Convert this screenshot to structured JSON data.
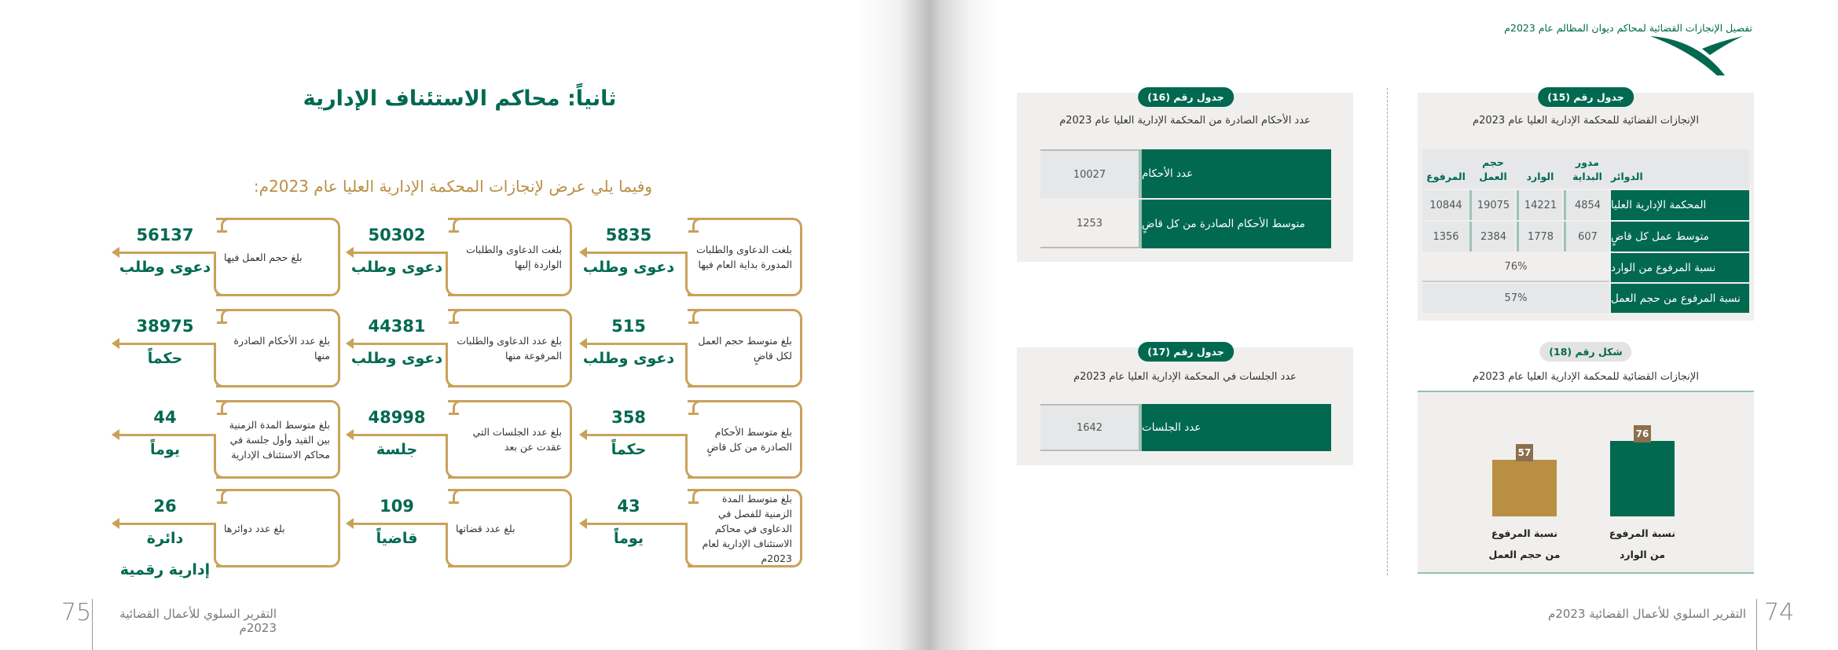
{
  "left_page": {
    "title": "ثانياً: محاكم الاستئناف الإدارية",
    "subtitle": "وفيما يلي عرض لإنجازات المحكمة الإدارية العليا عام 2023م:",
    "boxes": [
      [
        {
          "text": "بلغت الدعاوى والطلبات المدورة بداية العام فيها",
          "value": "5835",
          "unit": "دعوى وطلب"
        },
        {
          "text": "بلغت الدعاوى والطلبات الواردة إليها",
          "value": "50302",
          "unit": "دعوى وطلب"
        },
        {
          "text": "بلغ حجم العمل فيها",
          "value": "56137",
          "unit": "دعوى وطلب"
        }
      ],
      [
        {
          "text": "بلغ متوسط حجم العمل لكل قاضٍ",
          "value": "515",
          "unit": "دعوى وطلب"
        },
        {
          "text": "بلغ عدد الدعاوى والطلبات المرفوعة منها",
          "value": "44381",
          "unit": "دعوى وطلب"
        },
        {
          "text": "بلغ عدد الأحكام الصادرة منها",
          "value": "38975",
          "unit": "حكماً"
        }
      ],
      [
        {
          "text": "بلغ متوسط الأحكام الصادرة من كل قاضٍ",
          "value": "358",
          "unit": "حكماً"
        },
        {
          "text": "بلغ عدد الجلسات التي عقدت عن بعد",
          "value": "48998",
          "unit": "جلسة"
        },
        {
          "text": "بلغ متوسط المدة الزمنية بين القيد وأول جلسة في محاكم الاستئناف الإدارية",
          "value": "44",
          "unit": "يوماً"
        }
      ],
      [
        {
          "text": "بلغ متوسط المدة الزمنية للفصل في الدعاوى في محاكم الاستئناف الإدارية لعام 2023م",
          "value": "43",
          "unit": "يوماً"
        },
        {
          "text": "بلغ عدد قضاتها",
          "value": "109",
          "unit": "قاضياً"
        },
        {
          "text": "بلغ عدد دوائرها",
          "value": "26",
          "unit": "دائرة",
          "unit2": "إدارية رقمية"
        }
      ]
    ],
    "footer": "التقرير السلوي للأعمال القضائية 2023م",
    "page_number": "75"
  },
  "right_page": {
    "header": "تفصيل الإنجازات القضائية لمحاكم ديوان المظالم عام 2023م",
    "table15": {
      "badge": "جدول رقم (15)",
      "title": "الإنجازات القضائية للمحكمة الإدارية العليا عام 2023م",
      "headers": [
        "الدوائر",
        "مدور البداية",
        "الوارد",
        "حجم العمل",
        "المرفوع"
      ],
      "rows": [
        {
          "label": "المحكمة الإدارية العليا",
          "values": [
            "4854",
            "14221",
            "19075",
            "10844"
          ]
        },
        {
          "label": "متوسط عمل كل قاضٍ",
          "values": [
            "607",
            "1778",
            "2384",
            "1356"
          ]
        }
      ],
      "ratio_rows": [
        {
          "label": "نسبة المرفوع من الوارد",
          "value": "76%"
        },
        {
          "label": "نسبة المرفوع من حجم العمل",
          "value": "57%"
        }
      ]
    },
    "table16": {
      "badge": "جدول رقم (16)",
      "title": "عدد الأحكام الصادرة من المحكمة الإدارية العليا عام 2023م",
      "rows": [
        {
          "label": "عدد الأحكام",
          "value": "10027"
        },
        {
          "label": "متوسط الأحكام الصادرة من كل قاضٍ",
          "value": "1253"
        }
      ]
    },
    "table17": {
      "badge": "جدول رقم (17)",
      "title": "عدد الجلسات في المحكمة الإدارية العليا عام 2023م",
      "rows": [
        {
          "label": "عدد الجلسات",
          "value": "1642"
        }
      ]
    },
    "figure18": {
      "badge": "شكل رقم (18)",
      "title": "الإنجازات القضائية للمحكمة الإدارية العليا عام 2023م"
    },
    "footer": "التقرير السلوي للأعمال القضائية 2023م",
    "page_number": "74"
  },
  "colors": {
    "green": "#006950",
    "gold": "#b98f43",
    "label_brown": "#8b6f4e",
    "panel": "#f0efed"
  },
  "chart_data": {
    "type": "bar",
    "categories": [
      "نسبة المرفوع من الوارد",
      "نسبة المرفوع من حجم العمل"
    ],
    "category_lines": [
      [
        "نسبة المرفوع",
        "من الوارد"
      ],
      [
        "نسبة المرفوع",
        "من حجم العمل"
      ]
    ],
    "values": [
      76,
      57
    ],
    "bar_colors": [
      "#006950",
      "#b98f43"
    ],
    "title": "الإنجازات القضائية للمحكمة الإدارية العليا عام 2023م",
    "ylim": [
      0,
      100
    ],
    "grid": false
  }
}
